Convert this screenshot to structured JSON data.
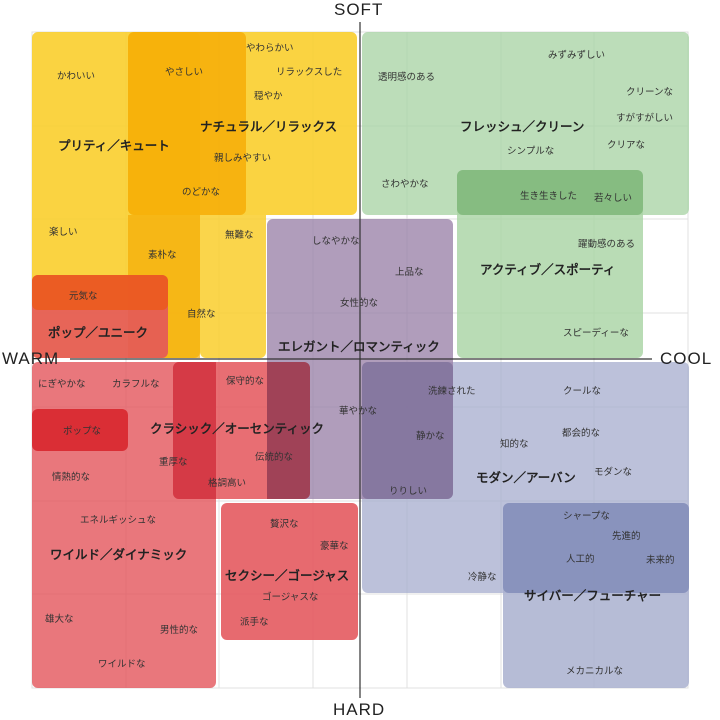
{
  "axes": {
    "top": "SOFT",
    "bottom": "HARD",
    "left": "WARM",
    "right": "COOL"
  },
  "categories": {
    "pretty_cute": "プリティ／キュート",
    "natural_relax": "ナチュラル／リラックス",
    "fresh_clean": "フレッシュ／クリーン",
    "active_sporty": "アクティブ／スポーティ",
    "elegant_romantic": "エレガント／ロマンティック",
    "pop_unique": "ポップ／ユニーク",
    "classic_authentic": "クラシック／オーセンティック",
    "modern_urban": "モダン／アーバン",
    "wild_dynamic": "ワイルド／ダイナミック",
    "sexy_gorgeous": "セクシー／ゴージャス",
    "cyber_future": "サイバー／フューチャー"
  },
  "words": {
    "yawarakai": "やわらかい",
    "kawaii": "かわいい",
    "yasashii": "やさしい",
    "relax": "リラックスした",
    "odayaka": "穏やか",
    "shitashimi": "親しみやすい",
    "nodoka": "のどかな",
    "tanoshii": "楽しい",
    "bujina": "無難な",
    "sobokuna": "素朴な",
    "genkina": "元気な",
    "shizenna": "自然な",
    "mizumizushii": "みずみずしい",
    "toumeikan": "透明感のある",
    "cleanna": "クリーンな",
    "sugasugashii": "すがすがしい",
    "clearna": "クリアな",
    "simpleな": "シンプルな",
    "sawayaka": "さわやかな",
    "ikiiki": "生き生きした",
    "wakawakashii": "若々しい",
    "yakudou": "躍動感のある",
    "speedy": "スピーディーな",
    "shinayaka": "しなやかな",
    "jouhin": "上品な",
    "joseiteki": "女性的な",
    "nigiyaka": "にぎやかな",
    "colorful": "カラフルな",
    "hoshuteki": "保守的な",
    "popna": "ポップな",
    "hanayaka": "華やかな",
    "senren": "洗練された",
    "coolna": "クールな",
    "shizuka": "静かな",
    "chiteki": "知的な",
    "tokaiteki": "都会的な",
    "modernna": "モダンな",
    "jojouteki": "情熱的な",
    "juukou": "重厚な",
    "dentou": "伝統的な",
    "kakuchou": "格調高い",
    "ririshii": "りりしい",
    "energetic": "エネルギッシュな",
    "zeitaku": "贅沢な",
    "gouka": "豪華な",
    "gorgeous": "ゴージャスな",
    "hadena": "派手な",
    "sharp": "シャープな",
    "sentan": "先進的",
    "jinkou": "人工的",
    "miraiteki": "未来的",
    "reisei": "冷静な",
    "yuudai": "雄大な",
    "danseiteki": "男性的な",
    "wild": "ワイルドな",
    "mechanical": "メカニカルな"
  },
  "colors": {
    "yellow": "#F7BE16",
    "orange": "#F5A800",
    "green": "#A9D4A5",
    "green_dark": "#7FB77A",
    "purple": "#9A82A8",
    "red": "#E4555B",
    "red_strong": "#D8262E",
    "orange_red": "#EB5B1E",
    "blue": "#A9B0CF",
    "blue_dark": "#7E88B5",
    "maroon": "#9E3346"
  }
}
